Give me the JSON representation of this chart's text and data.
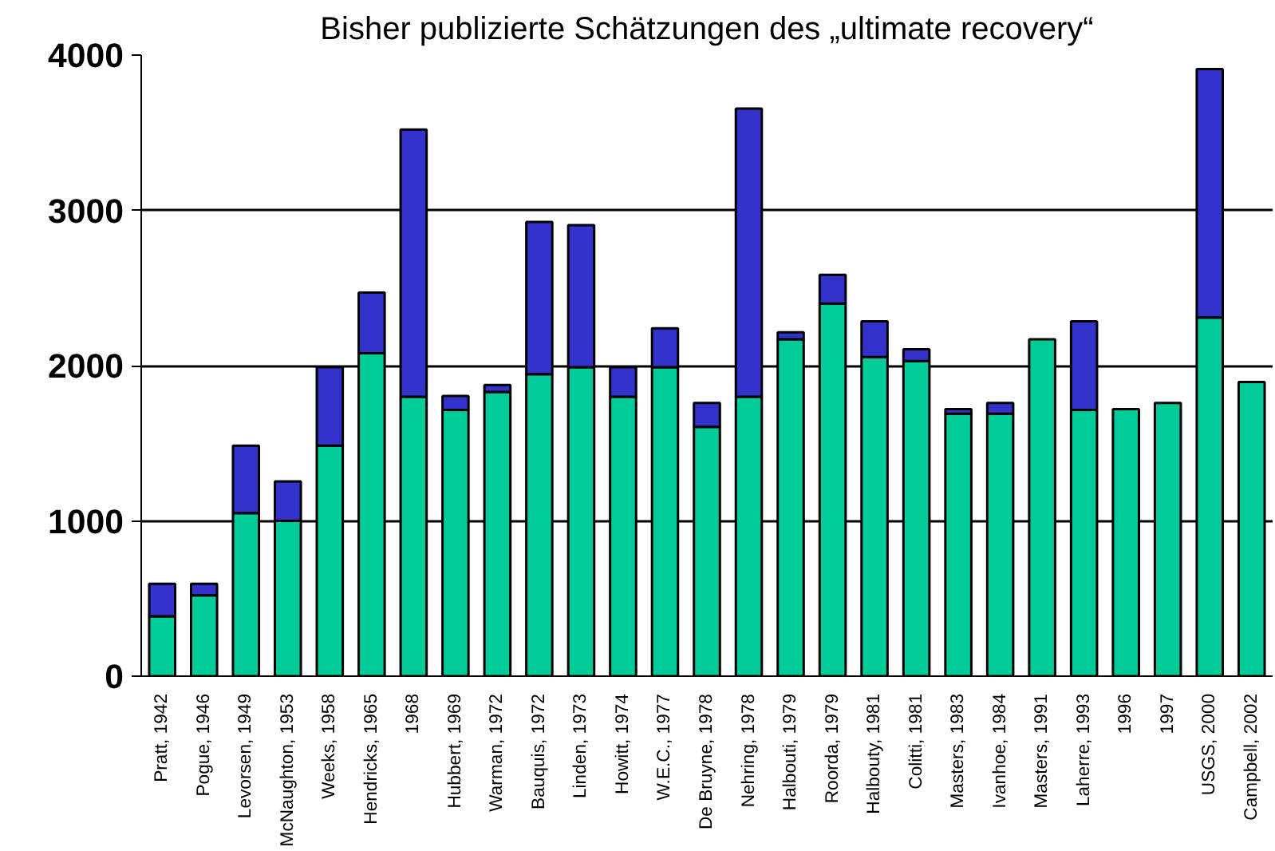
{
  "chart_data": {
    "type": "bar",
    "title": "Bisher publizierte Schätzungen des „ultimate recovery“",
    "stacked": true,
    "categories": [
      "Pratt, 1942",
      "Pogue, 1946",
      "Levorsen, 1949",
      "McNaughton, 1953",
      "Weeks, 1958",
      "Hendricks, 1965",
      "1968",
      "Hubbert, 1969",
      "Warman, 1972",
      "Bauquis, 1972",
      "Linden, 1973",
      "Howitt, 1974",
      "W.E.C., 1977",
      "De Bruyne, 1978",
      "Nehring, 1978",
      "Halbouti, 1979",
      "Roorda, 1979",
      "Halbouty, 1981",
      "Colitti, 1981",
      "Masters, 1983",
      "Ivanhoe, 1984",
      "Masters, 1991",
      "Laherre, 1993",
      "1996",
      "1997",
      "USGS, 2000",
      "Campbell, 2002"
    ],
    "series": [
      {
        "color": "#00cc99",
        "values": [
          385,
          520,
          1050,
          1000,
          1485,
          2080,
          1800,
          1715,
          1830,
          1945,
          1990,
          1800,
          1990,
          1605,
          1800,
          2170,
          2400,
          2055,
          2030,
          1690,
          1690,
          2170,
          1715,
          1720,
          1760,
          2310,
          1895
        ]
      },
      {
        "color": "#3333cc",
        "values": [
          210,
          75,
          435,
          255,
          505,
          390,
          1720,
          90,
          45,
          980,
          915,
          190,
          250,
          155,
          1855,
          45,
          185,
          230,
          75,
          30,
          70,
          null,
          570,
          null,
          null,
          1600,
          null
        ]
      }
    ],
    "ylim": [
      0,
      4000
    ],
    "yticks": [
      0,
      1000,
      2000,
      3000,
      4000
    ],
    "grid": "y"
  }
}
